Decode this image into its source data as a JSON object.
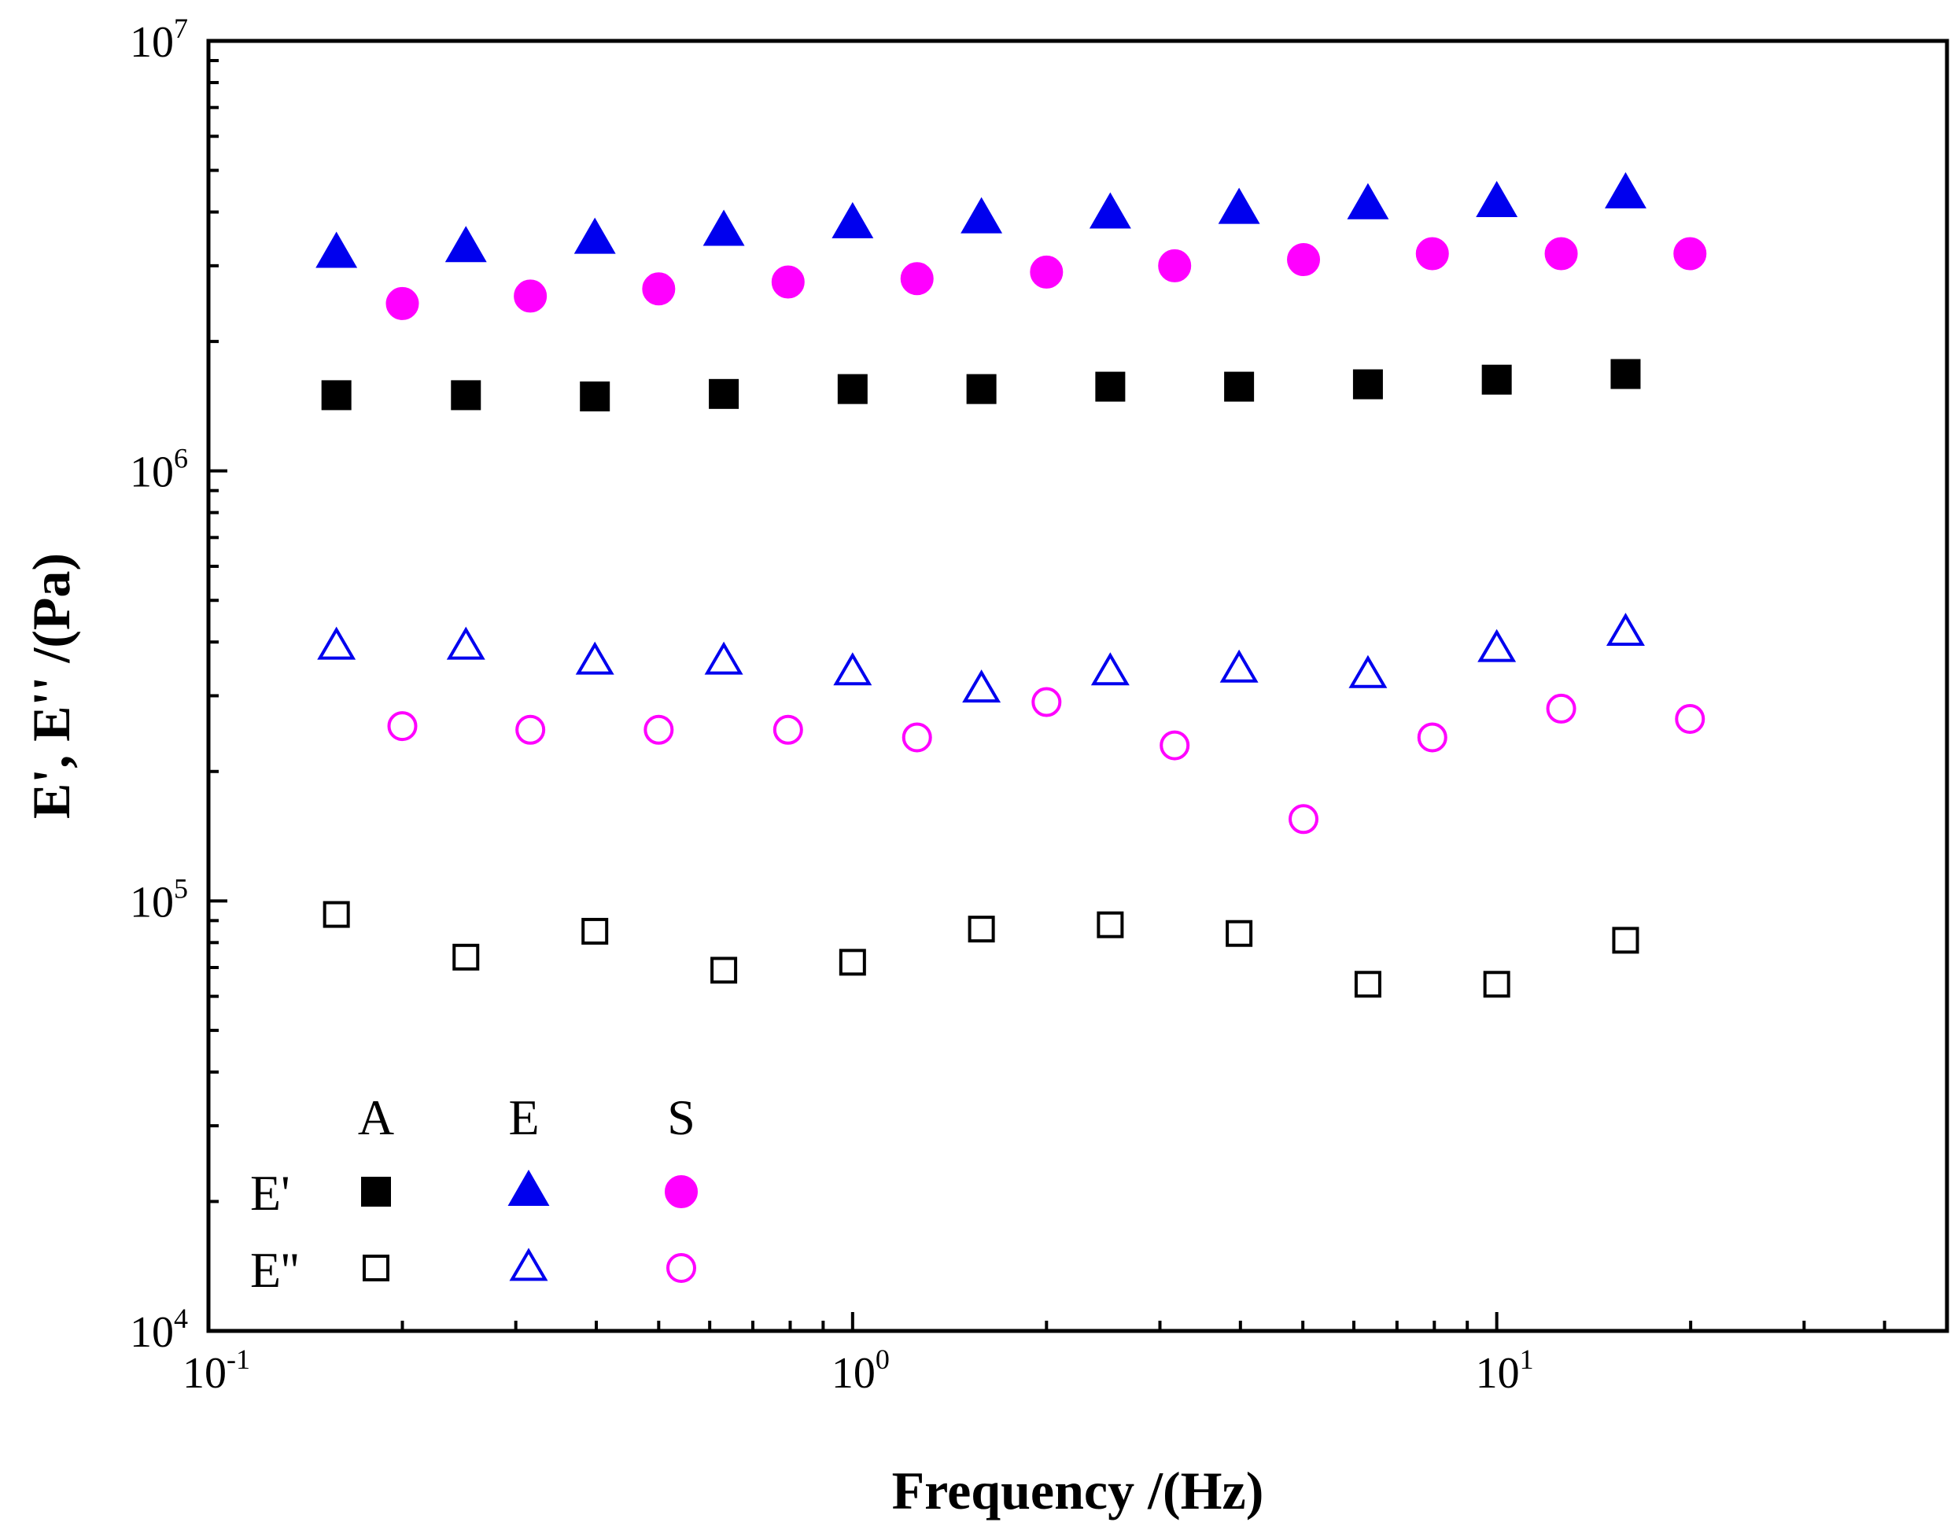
{
  "chart_data": {
    "type": "scatter",
    "title": "",
    "xlabel": "Frequency /(Hz)",
    "ylabel": "E', E'' /(Pa)",
    "xscale": "log",
    "yscale": "log",
    "xlim": [
      0.1,
      50
    ],
    "ylim": [
      10000,
      10000000
    ],
    "x_ticks": [
      {
        "value": 0.1,
        "base": "10",
        "exp": "-1"
      },
      {
        "value": 1,
        "base": "10",
        "exp": "0"
      },
      {
        "value": 10,
        "base": "10",
        "exp": "1"
      }
    ],
    "y_ticks": [
      {
        "value": 10000,
        "base": "10",
        "exp": "4"
      },
      {
        "value": 100000,
        "base": "10",
        "exp": "5"
      },
      {
        "value": 1000000,
        "base": "10",
        "exp": "6"
      },
      {
        "value": 10000000,
        "base": "10",
        "exp": "7"
      }
    ],
    "grid": false,
    "legend": {
      "position": "bottom-left",
      "column_headers": [
        "A",
        "E",
        "S"
      ],
      "row_labels": [
        "E'",
        "E''"
      ]
    },
    "series": [
      {
        "name": "E' A",
        "sample": "A",
        "modulus": "E'",
        "marker": "square",
        "filled": true,
        "color": "#000000",
        "x": [
          0.158,
          0.251,
          0.398,
          0.631,
          1.0,
          1.585,
          2.512,
          3.981,
          6.31,
          10.0,
          15.85
        ],
        "y": [
          1500000,
          1500000,
          1490000,
          1510000,
          1550000,
          1550000,
          1570000,
          1570000,
          1590000,
          1630000,
          1680000
        ]
      },
      {
        "name": "E' E",
        "sample": "E",
        "modulus": "E'",
        "marker": "triangle",
        "filled": true,
        "color": "#0000ee",
        "x": [
          0.158,
          0.251,
          0.398,
          0.631,
          1.0,
          1.585,
          2.512,
          3.981,
          6.31,
          10.0,
          15.85
        ],
        "y": [
          3200000,
          3300000,
          3450000,
          3600000,
          3750000,
          3850000,
          3950000,
          4050000,
          4150000,
          4200000,
          4400000
        ]
      },
      {
        "name": "E' S",
        "sample": "S",
        "modulus": "E'",
        "marker": "circle",
        "filled": true,
        "color": "#ff00ff",
        "x": [
          0.2,
          0.316,
          0.5,
          0.794,
          1.259,
          2.0,
          3.162,
          5.012,
          7.943,
          12.59,
          19.95
        ],
        "y": [
          2450000,
          2550000,
          2650000,
          2750000,
          2800000,
          2900000,
          3000000,
          3100000,
          3200000,
          3200000,
          3200000
        ]
      },
      {
        "name": "E'' A",
        "sample": "A",
        "modulus": "E''",
        "marker": "square",
        "filled": false,
        "color": "#000000",
        "x": [
          0.158,
          0.251,
          0.398,
          0.631,
          1.0,
          1.585,
          2.512,
          3.981,
          6.31,
          10.0,
          15.85
        ],
        "y": [
          93000,
          74000,
          85000,
          69000,
          72000,
          86000,
          88000,
          84000,
          64000,
          64000,
          81000
        ]
      },
      {
        "name": "E'' E",
        "sample": "E",
        "modulus": "E''",
        "marker": "triangle",
        "filled": false,
        "color": "#0000ee",
        "x": [
          0.158,
          0.251,
          0.398,
          0.631,
          1.0,
          1.585,
          2.512,
          3.981,
          6.31,
          10.0,
          15.85
        ],
        "y": [
          390000,
          390000,
          360000,
          360000,
          340000,
          310000,
          340000,
          345000,
          335000,
          385000,
          420000
        ]
      },
      {
        "name": "E'' S",
        "sample": "S",
        "modulus": "E''",
        "marker": "circle",
        "filled": false,
        "color": "#ff00ff",
        "x": [
          0.2,
          0.316,
          0.5,
          0.794,
          1.259,
          2.0,
          3.162,
          5.012,
          7.943,
          12.59,
          19.95
        ],
        "y": [
          255000,
          250000,
          250000,
          250000,
          240000,
          290000,
          230000,
          155000,
          240000,
          280000,
          265000
        ]
      }
    ]
  }
}
